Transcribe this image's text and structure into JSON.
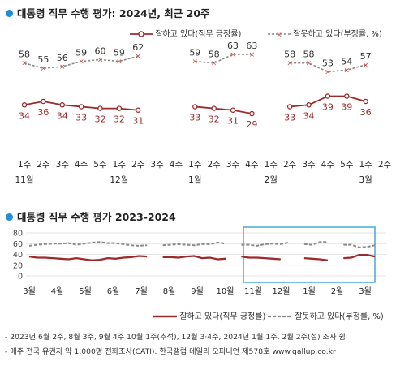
{
  "top": {
    "title": "대통령 직무 수행 평가: 2024년, 최근 20주",
    "legend_approve": "잘하고 있다(직무 긍정률)",
    "legend_disapprove": "잘못하고 있다(부정률, %)"
  },
  "bottom": {
    "title": "대통령 직무 수행 평가 2023-2024",
    "legend_approve": "잘하고 있다(직무 긍정률)",
    "legend_disapprove": "잘못하고 있다(부정률, %)",
    "note1": "- 2023년 6월 2주, 8월 3주, 9월 4주 10월 1주(추석), 12월 3·4주, 2024년 1월 1주, 2월 2주(설) 조사 쉼",
    "note2": "- 매주 전국 유권자 약 1,000명 전화조사(CATI). 한국갤럽 데일리 오피니언 제578호 www.gallup.co.kr"
  },
  "colors": {
    "approve": "#9e2b2b",
    "disapprove": "#8a8a8a",
    "accent": "#1f8fd6",
    "highlight": "#3aa3d6"
  },
  "chart_data": [
    {
      "type": "line",
      "title": "대통령 직무 수행 평가: 2024년, 최근 20주",
      "x_ticks": [
        "1주",
        "2주",
        "3주",
        "4주",
        "5주",
        "1주",
        "2주",
        "3주",
        "4주",
        "1주",
        "2주",
        "3주",
        "4주",
        "1주",
        "2주",
        "3주",
        "4주",
        "5주",
        "1주",
        "2주"
      ],
      "month_labels": [
        {
          "label": "11월",
          "index": 0
        },
        {
          "label": "12월",
          "index": 5
        },
        {
          "label": "1월",
          "index": 9
        },
        {
          "label": "2월",
          "index": 13
        },
        {
          "label": "3월",
          "index": 18
        }
      ],
      "series": [
        {
          "name": "잘하고 있다(직무 긍정률)",
          "values": [
            34,
            36,
            34,
            33,
            32,
            32,
            31,
            null,
            null,
            33,
            32,
            31,
            29,
            null,
            33,
            34,
            39,
            39,
            36,
            null
          ]
        },
        {
          "name": "잘못하고 있다(부정률, %)",
          "values": [
            58,
            55,
            56,
            59,
            60,
            59,
            62,
            null,
            null,
            59,
            58,
            63,
            63,
            null,
            58,
            58,
            53,
            54,
            57,
            null
          ]
        }
      ],
      "ylim": [
        20,
        70
      ]
    },
    {
      "type": "line",
      "title": "대통령 직무 수행 평가 2023-2024",
      "y_ticks": [
        0,
        20,
        40,
        60,
        80
      ],
      "ylim": [
        0,
        80
      ],
      "x_month_labels": [
        "3월",
        "4월",
        "5월",
        "6월",
        "7월",
        "8월",
        "9월",
        "10월",
        "11월",
        "12월",
        "1월",
        "2월",
        "3월"
      ],
      "highlight_window": "최근 20주 (11월–3월)",
      "series": [
        {
          "name": "잘하고 있다(직무 긍정률)",
          "values": [
            36,
            34,
            34,
            33,
            32,
            31,
            33,
            31,
            29,
            30,
            33,
            32,
            34,
            35,
            37,
            36,
            null,
            35,
            35,
            34,
            36,
            37,
            33,
            34,
            31,
            32,
            null,
            36,
            34,
            34,
            33,
            32,
            31,
            null,
            null,
            33,
            32,
            31,
            29,
            null,
            33,
            34,
            39,
            39,
            36
          ]
        },
        {
          "name": "잘못하고 있다(부정률, %)",
          "values": [
            56,
            58,
            59,
            60,
            60,
            61,
            58,
            60,
            62,
            63,
            61,
            61,
            59,
            57,
            56,
            57,
            null,
            57,
            58,
            59,
            58,
            57,
            59,
            59,
            62,
            60,
            null,
            58,
            58,
            56,
            59,
            60,
            59,
            62,
            null,
            59,
            58,
            63,
            63,
            null,
            58,
            58,
            53,
            54,
            57
          ]
        }
      ]
    }
  ]
}
